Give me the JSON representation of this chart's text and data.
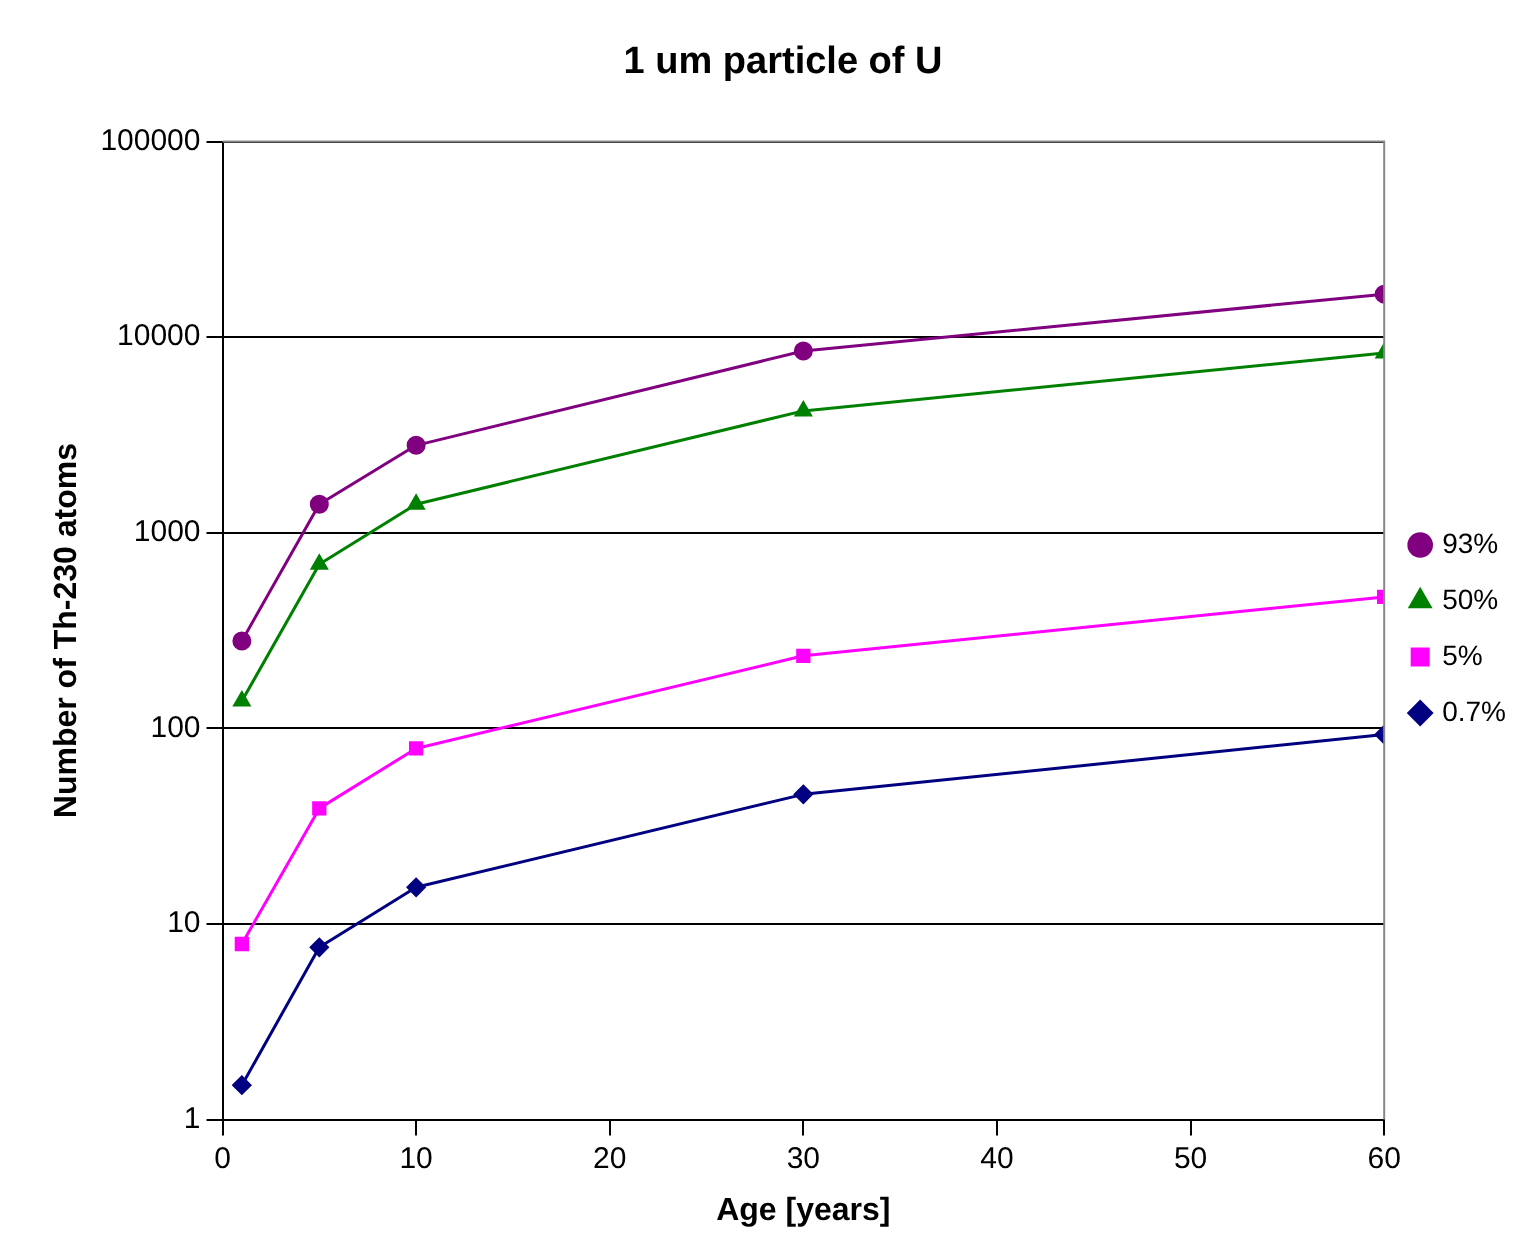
{
  "chart_data": {
    "type": "line",
    "title": "1 um particle of U",
    "xlabel": "Age [years]",
    "ylabel": "Number of Th-230 atoms",
    "x": [
      1,
      5,
      10,
      30,
      60
    ],
    "series": [
      {
        "name": "93%",
        "color": "#800080",
        "marker": "circle",
        "values": [
          280,
          1400,
          2800,
          8500,
          16600
        ]
      },
      {
        "name": "50%",
        "color": "#008000",
        "marker": "triangle",
        "values": [
          138,
          690,
          1400,
          4200,
          8300
        ]
      },
      {
        "name": "5%",
        "color": "#ff00ff",
        "marker": "square",
        "values": [
          7.9,
          39,
          79,
          235,
          470
        ]
      },
      {
        "name": "0.7%",
        "color": "#000080",
        "marker": "diamond",
        "values": [
          1.5,
          7.6,
          15.4,
          46,
          93
        ]
      }
    ],
    "xlim": [
      0,
      60
    ],
    "xticks": [
      0,
      10,
      20,
      30,
      40,
      50,
      60
    ],
    "ylim": [
      1,
      100000
    ],
    "yticks": [
      1,
      10,
      100,
      1000,
      10000,
      100000
    ],
    "log": "y",
    "grid": "y",
    "legend": "right"
  }
}
